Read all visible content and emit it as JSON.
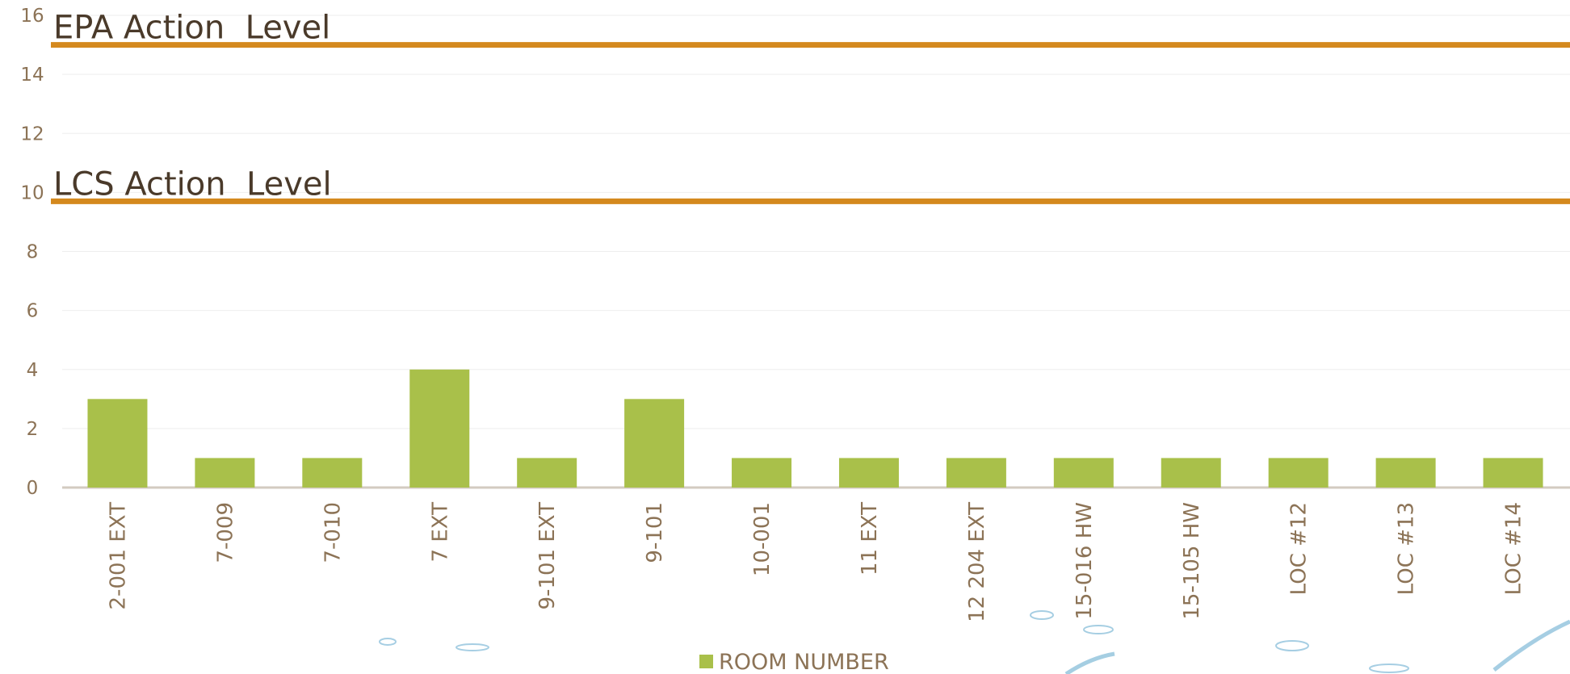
{
  "chart_data": {
    "type": "bar",
    "categories": [
      "2-001 EXT",
      "7-009",
      "7-010",
      "7 EXT",
      "9-101 EXT",
      "9-101",
      "10-001",
      "11 EXT",
      "12 204 EXT",
      "15-016 HW",
      "15-105 HW",
      "LOC #12",
      "LOC #13",
      "LOC #14"
    ],
    "series": [
      {
        "name": "ROOM NUMBER",
        "color": "#a9c04a",
        "values": [
          3,
          1,
          1,
          4,
          1,
          3,
          1,
          1,
          1,
          1,
          1,
          1,
          1,
          1
        ]
      }
    ],
    "ylim": [
      0,
      16
    ],
    "yticks": [
      0,
      2,
      4,
      6,
      8,
      10,
      12,
      14,
      16
    ],
    "grid": true,
    "reference_lines": [
      {
        "label": "EPA Action  Level",
        "value": 15,
        "color": "#d4891e"
      },
      {
        "label": "LCS Action  Level",
        "value": 9.7,
        "color": "#d4891e"
      }
    ],
    "legend": "bottom"
  }
}
